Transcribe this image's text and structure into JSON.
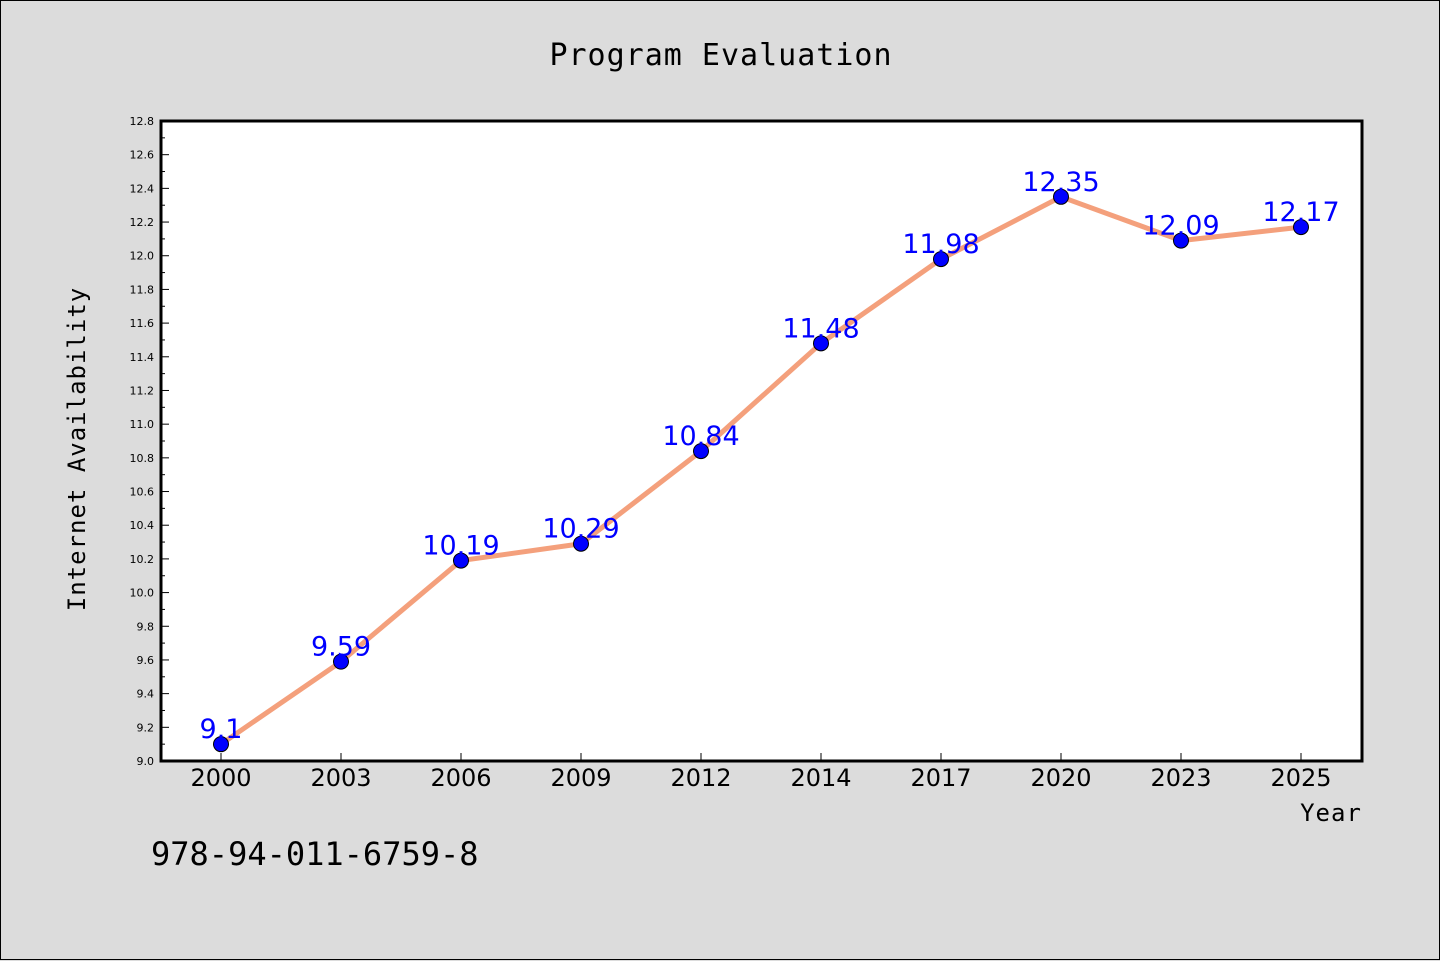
{
  "chart_data": {
    "type": "line",
    "title": "Program Evaluation",
    "xlabel": "Year",
    "ylabel": "Internet Availability",
    "categories": [
      "2000",
      "2003",
      "2006",
      "2009",
      "2012",
      "2014",
      "2017",
      "2020",
      "2023",
      "2025"
    ],
    "values": [
      9.1,
      9.59,
      10.19,
      10.29,
      10.84,
      11.48,
      11.98,
      12.35,
      12.09,
      12.17
    ],
    "data_labels": [
      "9.1",
      "9.59",
      "10.19",
      "10.29",
      "10.84",
      "11.48",
      "11.98",
      "12.35",
      "12.09",
      "12.17"
    ],
    "ylim": [
      9.0,
      12.8
    ],
    "yticks": [
      "9.0",
      "9.2",
      "9.4",
      "9.6",
      "9.8",
      "10.0",
      "10.2",
      "10.4",
      "10.6",
      "10.8",
      "11.0",
      "11.2",
      "11.4",
      "11.6",
      "11.8",
      "12.0",
      "12.2",
      "12.4",
      "12.6",
      "12.8"
    ],
    "grid": false,
    "line_color": "#f4a07c",
    "marker_color": "#0000ff",
    "label_color": "#0000ff"
  },
  "footer": {
    "isbn": "978-94-011-6759-8"
  }
}
